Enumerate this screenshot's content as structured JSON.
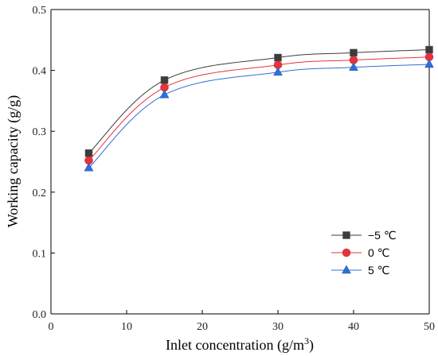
{
  "chart_data": {
    "type": "line",
    "title": "",
    "xlabel": "Inlet concentration (g/m",
    "xlabel_sup": "3",
    "xlabel_end": ")",
    "ylabel": "Working capacity (g/g)",
    "xlim": [
      0,
      50
    ],
    "ylim": [
      0,
      0.5
    ],
    "xticks": [
      0,
      10,
      20,
      30,
      40,
      50
    ],
    "yticks": [
      0.0,
      0.1,
      0.2,
      0.3,
      0.4,
      0.5
    ],
    "xtick_labels": [
      "0",
      "10",
      "20",
      "30",
      "40",
      "50"
    ],
    "ytick_labels": [
      "0.0",
      "0.1",
      "0.2",
      "0.3",
      "0.4",
      "0.5"
    ],
    "grid": false,
    "legend_position": "bottom-right",
    "x": [
      5,
      15,
      30,
      40,
      50
    ],
    "series": [
      {
        "name": "−5 ℃",
        "values": [
          0.264,
          0.384,
          0.421,
          0.429,
          0.434
        ],
        "color": "#3c3c3c",
        "marker": "square"
      },
      {
        "name": "0 ℃",
        "values": [
          0.252,
          0.372,
          0.409,
          0.417,
          0.422
        ],
        "color": "#e8323c",
        "marker": "circle"
      },
      {
        "name": "5 ℃",
        "values": [
          0.24,
          0.36,
          0.397,
          0.405,
          0.41
        ],
        "color": "#2f6fd6",
        "marker": "triangle"
      }
    ]
  }
}
